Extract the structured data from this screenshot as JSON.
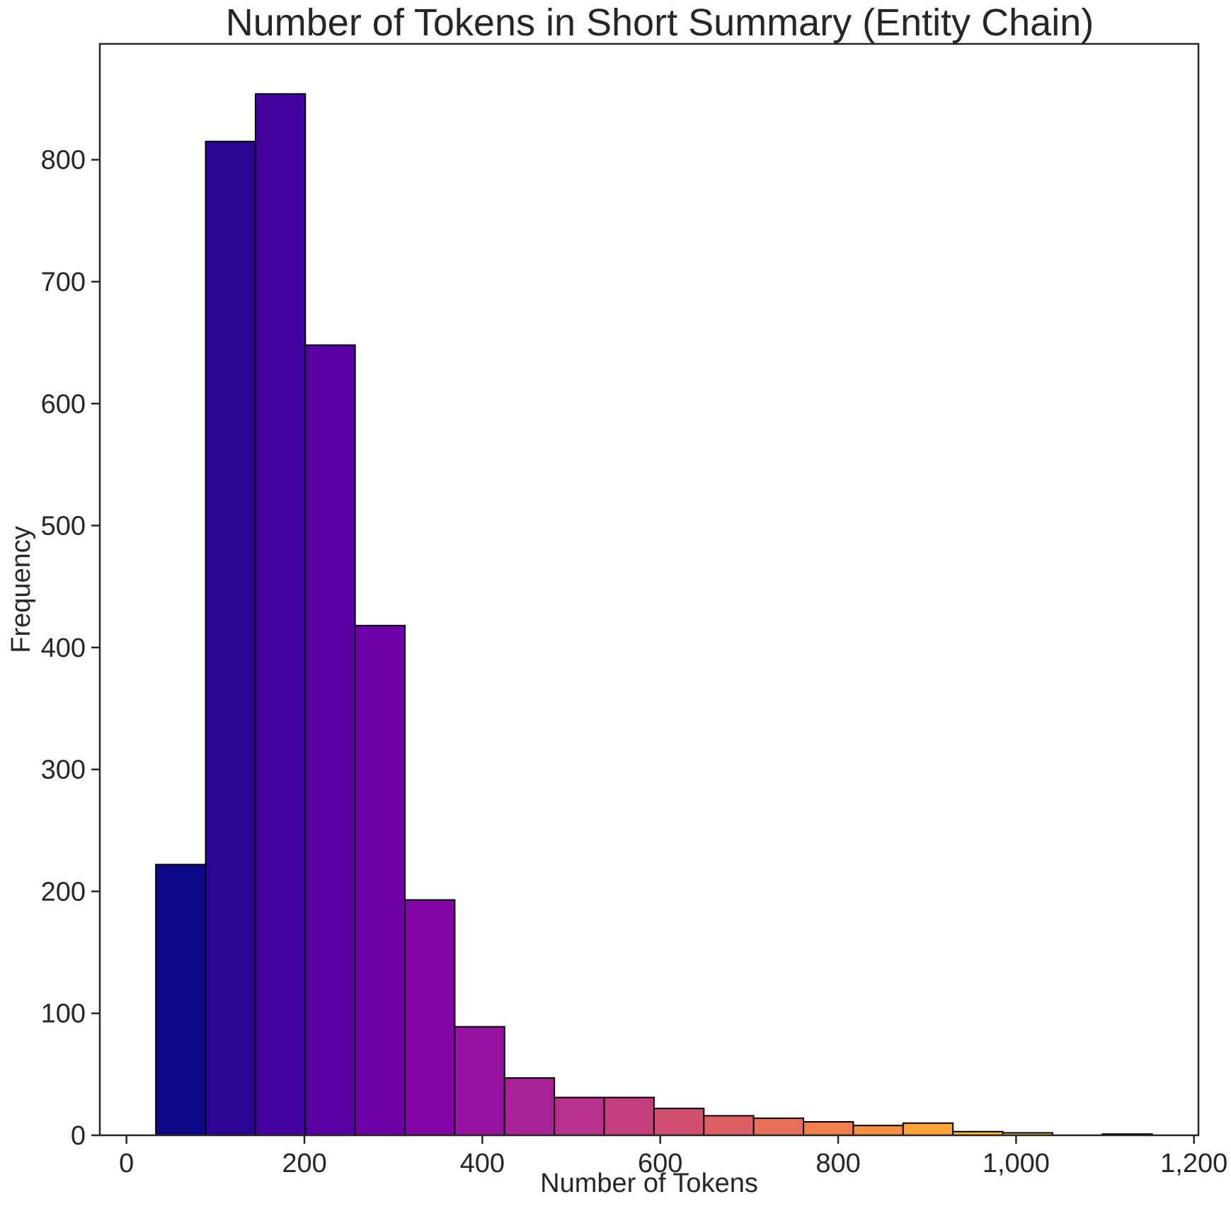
{
  "chart_data": {
    "type": "bar",
    "title": "Number of Tokens in Short Summary (Entity Chain)",
    "xlabel": "Number of Tokens",
    "ylabel": "Frequency",
    "xlim": [
      -30,
      1205
    ],
    "ylim": [
      0,
      895
    ],
    "x_ticks": [
      0,
      200,
      400,
      600,
      800,
      1000,
      1200
    ],
    "x_tick_labels": [
      "0",
      "200",
      "400",
      "600",
      "800",
      "1,000",
      "1,200"
    ],
    "y_ticks": [
      0,
      100,
      200,
      300,
      400,
      500,
      600,
      700,
      800
    ],
    "y_tick_labels": [
      "0",
      "100",
      "200",
      "300",
      "400",
      "500",
      "600",
      "700",
      "800"
    ],
    "grid": false,
    "colormap": "plasma",
    "bins": [
      {
        "x0": 33,
        "x1": 89,
        "count": 222,
        "color": "#0d0887"
      },
      {
        "x0": 89,
        "x1": 145,
        "count": 815,
        "color": "#2c0594"
      },
      {
        "x0": 145,
        "x1": 201,
        "count": 854,
        "color": "#43039e"
      },
      {
        "x0": 201,
        "x1": 257,
        "count": 648,
        "color": "#5a01a5"
      },
      {
        "x0": 257,
        "x1": 313,
        "count": 418,
        "color": "#6e00a8"
      },
      {
        "x0": 313,
        "x1": 369,
        "count": 193,
        "color": "#8305a7"
      },
      {
        "x0": 369,
        "x1": 425,
        "count": 89,
        "color": "#9612a1"
      },
      {
        "x0": 425,
        "x1": 481,
        "count": 47,
        "color": "#a72197"
      },
      {
        "x0": 481,
        "x1": 537,
        "count": 31,
        "color": "#b7308b"
      },
      {
        "x0": 537,
        "x1": 593,
        "count": 31,
        "color": "#c53f7e"
      },
      {
        "x0": 593,
        "x1": 649,
        "count": 22,
        "color": "#d24e71"
      },
      {
        "x0": 649,
        "x1": 705,
        "count": 16,
        "color": "#dd5e65"
      },
      {
        "x0": 705,
        "x1": 761,
        "count": 14,
        "color": "#e76e59"
      },
      {
        "x0": 761,
        "x1": 817,
        "count": 11,
        "color": "#f07f4c"
      },
      {
        "x0": 817,
        "x1": 873,
        "count": 8,
        "color": "#f79040"
      },
      {
        "x0": 873,
        "x1": 929,
        "count": 10,
        "color": "#fba238"
      },
      {
        "x0": 929,
        "x1": 985,
        "count": 3,
        "color": "#feb72d"
      },
      {
        "x0": 985,
        "x1": 1041,
        "count": 2,
        "color": "#fdcb26"
      },
      {
        "x0": 1041,
        "x1": 1097,
        "count": 0,
        "color": "#f7e225"
      },
      {
        "x0": 1097,
        "x1": 1153,
        "count": 1,
        "color": "#f0f921"
      }
    ]
  }
}
